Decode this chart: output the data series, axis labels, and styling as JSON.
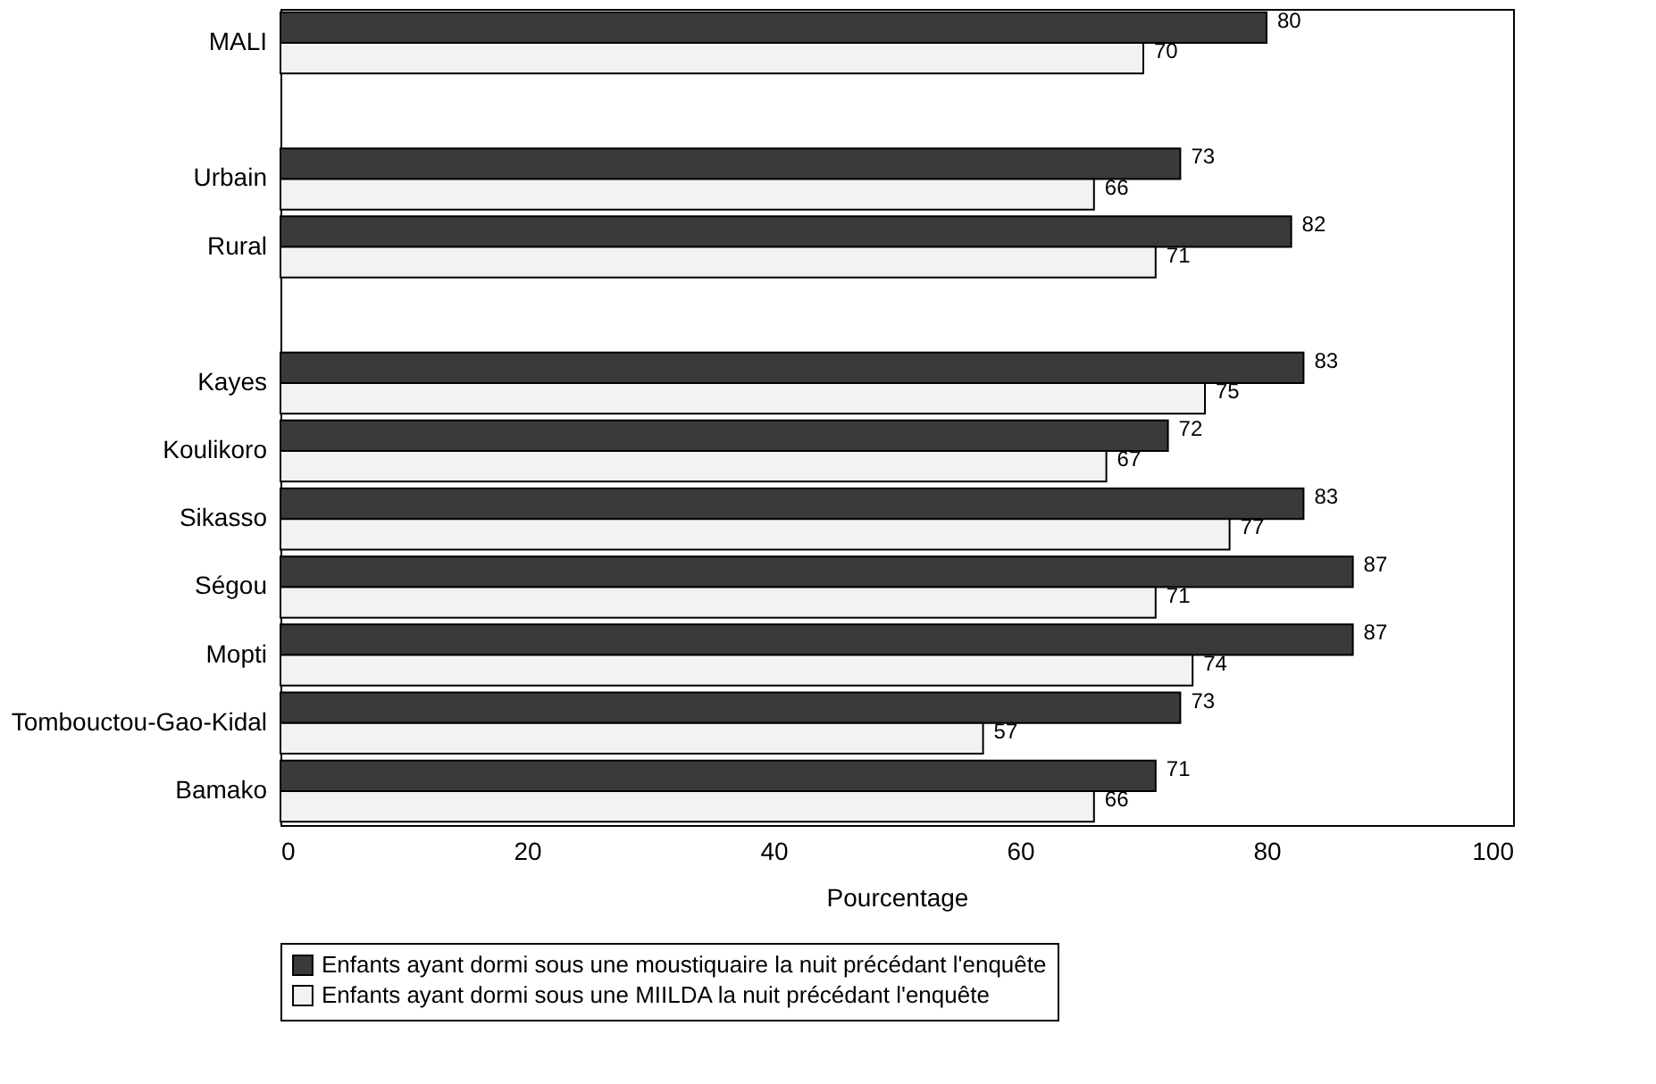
{
  "chart_data": {
    "type": "bar",
    "orientation": "horizontal",
    "xlabel": "Pourcentage",
    "categories": [
      "MALI",
      null,
      "Urbain",
      "Rural",
      null,
      "Kayes",
      "Koulikoro",
      "Sikasso",
      "Ségou",
      "Mopti",
      "Tombouctou-Gao-Kidal",
      "Bamako"
    ],
    "series": [
      {
        "name": "Enfants ayant dormi sous une moustiquaire la nuit précédant l'enquête",
        "color": "#3a3a3a",
        "values": [
          80,
          null,
          73,
          82,
          null,
          83,
          72,
          83,
          87,
          87,
          73,
          71
        ]
      },
      {
        "name": "Enfants ayant dormi sous une MIILDA la nuit précédant l'enquête",
        "color": "#f2f2f2",
        "values": [
          70,
          null,
          66,
          71,
          null,
          75,
          67,
          77,
          71,
          74,
          57,
          66
        ]
      }
    ],
    "xlim": [
      0,
      100
    ],
    "xticks": [
      0,
      20,
      40,
      60,
      80,
      100
    ],
    "data_labels": true,
    "grid": false,
    "legend": "bottom"
  }
}
